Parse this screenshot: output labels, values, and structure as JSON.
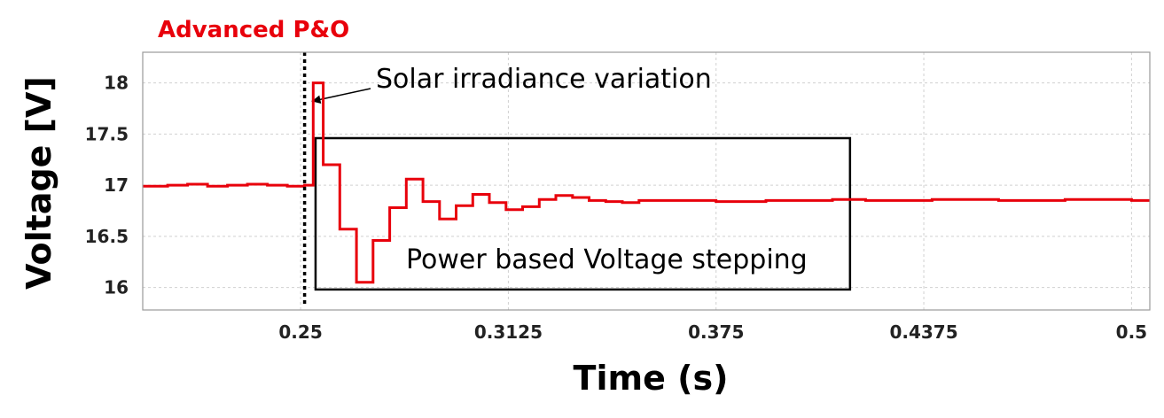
{
  "chart_data": {
    "type": "line",
    "title": "Advanced P&O",
    "xlabel": "Time (s)",
    "ylabel": "Voltage [V]",
    "xlim": [
      0.2025,
      0.5055
    ],
    "ylim": [
      15.78,
      18.3
    ],
    "xticks": [
      0.25,
      0.3125,
      0.375,
      0.4375,
      0.5
    ],
    "xtick_labels": [
      "0.25",
      "0.3125",
      "0.375",
      "0.4375",
      "0.5"
    ],
    "yticks": [
      16,
      16.5,
      17,
      17.5,
      18
    ],
    "ytick_labels": [
      "16",
      "16.5",
      "17",
      "17.5",
      "18"
    ],
    "grid": true,
    "series": [
      {
        "name": "",
        "color": "#e8000b",
        "step": true,
        "x": [
          0.2025,
          0.21,
          0.216,
          0.222,
          0.228,
          0.234,
          0.24,
          0.246,
          0.2512,
          0.2538,
          0.2568,
          0.2618,
          0.2668,
          0.2718,
          0.2768,
          0.2818,
          0.2868,
          0.2918,
          0.2968,
          0.3018,
          0.3068,
          0.3118,
          0.3168,
          0.3218,
          0.3268,
          0.3318,
          0.3368,
          0.3418,
          0.3468,
          0.3518,
          0.36,
          0.375,
          0.39,
          0.41,
          0.42,
          0.44,
          0.46,
          0.48,
          0.5,
          0.5055
        ],
        "y": [
          16.99,
          17.0,
          17.01,
          16.99,
          17.0,
          17.01,
          17.0,
          16.99,
          17.0,
          18.0,
          17.2,
          16.57,
          16.05,
          16.46,
          16.78,
          17.06,
          16.84,
          16.67,
          16.8,
          16.91,
          16.83,
          16.76,
          16.79,
          16.86,
          16.9,
          16.88,
          16.85,
          16.84,
          16.83,
          16.85,
          16.85,
          16.84,
          16.85,
          16.86,
          16.85,
          16.86,
          16.85,
          16.86,
          16.85,
          16.85
        ]
      }
    ],
    "event_marker": {
      "x": 0.2512,
      "style": "dotted",
      "color": "#000000"
    },
    "annotations": {
      "arrow_label": "Solar irradiance variation",
      "box_label": "Power based Voltage stepping",
      "box_x_range": [
        0.2545,
        0.4153
      ],
      "box_y_range": [
        15.98,
        17.46
      ]
    }
  },
  "colors": {
    "title": "#e8000b",
    "line": "#e8000b",
    "grid": "#d0d0d0"
  }
}
